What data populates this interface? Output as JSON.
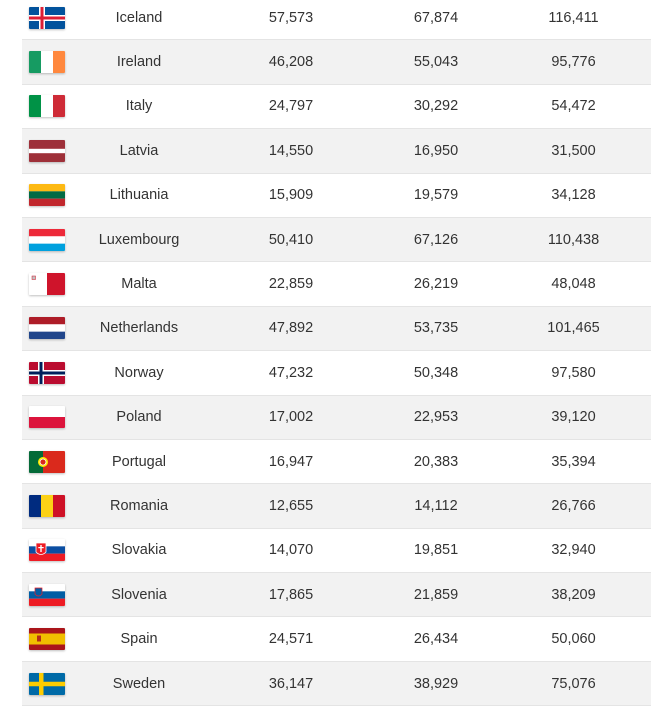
{
  "rows": [
    {
      "country": "Iceland",
      "flag": "iceland-flag-icon",
      "col1": "57,573",
      "col2": "67,874",
      "col3": "116,411"
    },
    {
      "country": "Ireland",
      "flag": "ireland-flag-icon",
      "col1": "46,208",
      "col2": "55,043",
      "col3": "95,776"
    },
    {
      "country": "Italy",
      "flag": "italy-flag-icon",
      "col1": "24,797",
      "col2": "30,292",
      "col3": "54,472"
    },
    {
      "country": "Latvia",
      "flag": "latvia-flag-icon",
      "col1": "14,550",
      "col2": "16,950",
      "col3": "31,500"
    },
    {
      "country": "Lithuania",
      "flag": "lithuania-flag-icon",
      "col1": "15,909",
      "col2": "19,579",
      "col3": "34,128"
    },
    {
      "country": "Luxembourg",
      "flag": "luxembourg-flag-icon",
      "col1": "50,410",
      "col2": "67,126",
      "col3": "110,438"
    },
    {
      "country": "Malta",
      "flag": "malta-flag-icon",
      "col1": "22,859",
      "col2": "26,219",
      "col3": "48,048"
    },
    {
      "country": "Netherlands",
      "flag": "netherlands-flag-icon",
      "col1": "47,892",
      "col2": "53,735",
      "col3": "101,465"
    },
    {
      "country": "Norway",
      "flag": "norway-flag-icon",
      "col1": "47,232",
      "col2": "50,348",
      "col3": "97,580"
    },
    {
      "country": "Poland",
      "flag": "poland-flag-icon",
      "col1": "17,002",
      "col2": "22,953",
      "col3": "39,120"
    },
    {
      "country": "Portugal",
      "flag": "portugal-flag-icon",
      "col1": "16,947",
      "col2": "20,383",
      "col3": "35,394"
    },
    {
      "country": "Romania",
      "flag": "romania-flag-icon",
      "col1": "12,655",
      "col2": "14,112",
      "col3": "26,766"
    },
    {
      "country": "Slovakia",
      "flag": "slovakia-flag-icon",
      "col1": "14,070",
      "col2": "19,851",
      "col3": "32,940"
    },
    {
      "country": "Slovenia",
      "flag": "slovenia-flag-icon",
      "col1": "17,865",
      "col2": "21,859",
      "col3": "38,209"
    },
    {
      "country": "Spain",
      "flag": "spain-flag-icon",
      "col1": "24,571",
      "col2": "26,434",
      "col3": "50,060"
    },
    {
      "country": "Sweden",
      "flag": "sweden-flag-icon",
      "col1": "36,147",
      "col2": "38,929",
      "col3": "75,076"
    }
  ],
  "colors": {
    "row_alt_bg": "#f2f2f2",
    "row_bg": "#ffffff",
    "text": "#333333",
    "divider": "#e4e4e4"
  }
}
